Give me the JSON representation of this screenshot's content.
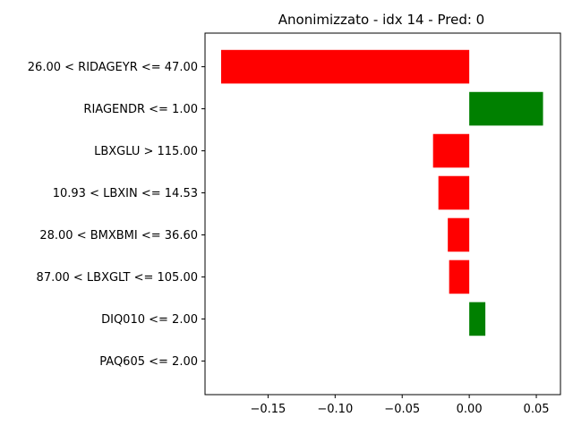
{
  "chart_data": {
    "type": "bar",
    "orientation": "horizontal",
    "title": "Anonimizzato - idx 14 - Pred: 0",
    "xlabel": "",
    "ylabel": "",
    "categories": [
      "26.00 < RIDAGEYR <= 47.00",
      "RIAGENDR <= 1.00",
      "LBXGLU > 115.00",
      "10.93 < LBXIN <= 14.53",
      "28.00 < BMXBMI <= 36.60",
      "87.00 < LBXGLT <= 105.00",
      "DIQ010 <= 2.00",
      "PAQ605 <= 2.00"
    ],
    "values": [
      -0.185,
      0.055,
      -0.027,
      -0.023,
      -0.016,
      -0.015,
      0.012,
      0.0
    ],
    "xlim": [
      -0.197,
      0.068
    ],
    "xticks": [
      -0.15,
      -0.1,
      -0.05,
      0.0,
      0.05
    ],
    "xtick_labels": [
      "−0.15",
      "−0.10",
      "−0.05",
      "0.00",
      "0.05"
    ],
    "grid": false,
    "colors": {
      "positive": "#008000",
      "negative": "#ff0000"
    }
  }
}
